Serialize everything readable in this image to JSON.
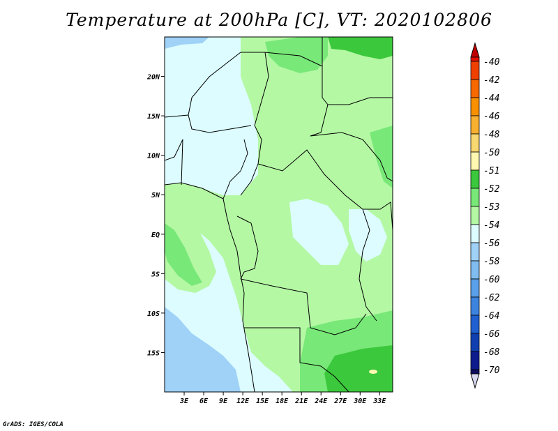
{
  "title": "Temperature at 200hPa [C], VT: 2020102806",
  "credit": "GrADS: IGES/COLA",
  "map": {
    "lon_range": [
      0,
      35
    ],
    "lat_range": [
      -20,
      25
    ],
    "lat_ticks": [
      {
        "value": 20,
        "label": "20N"
      },
      {
        "value": 15,
        "label": "15N"
      },
      {
        "value": 10,
        "label": "10N"
      },
      {
        "value": 5,
        "label": "5N"
      },
      {
        "value": 0,
        "label": "EQ"
      },
      {
        "value": -5,
        "label": "5S"
      },
      {
        "value": -10,
        "label": "10S"
      },
      {
        "value": -15,
        "label": "15S"
      }
    ],
    "lon_ticks": [
      {
        "value": 3,
        "label": "3E"
      },
      {
        "value": 6,
        "label": "6E"
      },
      {
        "value": 9,
        "label": "9E"
      },
      {
        "value": 12,
        "label": "12E"
      },
      {
        "value": 15,
        "label": "15E"
      },
      {
        "value": 18,
        "label": "18E"
      },
      {
        "value": 21,
        "label": "21E"
      },
      {
        "value": 24,
        "label": "24E"
      },
      {
        "value": 27,
        "label": "27E"
      },
      {
        "value": 30,
        "label": "30E"
      },
      {
        "value": 33,
        "label": "33E"
      }
    ]
  },
  "colors": {
    "c_lt_m56": "#a0d2f8",
    "c_m56_m54": "#dcfcff",
    "c_m54_m53": "#b4f8a4",
    "c_m53_m52": "#78e878",
    "c_m52_m51": "#3cc83c",
    "c_m51_m50": "#fff8b0",
    "border": "#000000"
  },
  "colorbar": {
    "labels": [
      "-40",
      "-42",
      "-44",
      "-46",
      "-48",
      "-50",
      "-51",
      "-52",
      "-53",
      "-54",
      "-56",
      "-58",
      "-60",
      "-62",
      "-64",
      "-66",
      "-68",
      "-70"
    ],
    "colors": [
      "#e01000",
      "#f04000",
      "#f86800",
      "#f89000",
      "#f8b030",
      "#f8d870",
      "#fff8b0",
      "#3cc83c",
      "#78e878",
      "#b4f8a4",
      "#dcfcff",
      "#a0d2f8",
      "#80bcf0",
      "#5aa0ea",
      "#3c84e0",
      "#2060d0",
      "#1040b0",
      "#0c1c8c",
      "#0c0c60"
    ],
    "max_tip_color": "#c00000",
    "min_tip_color": "#d8d8f0"
  }
}
